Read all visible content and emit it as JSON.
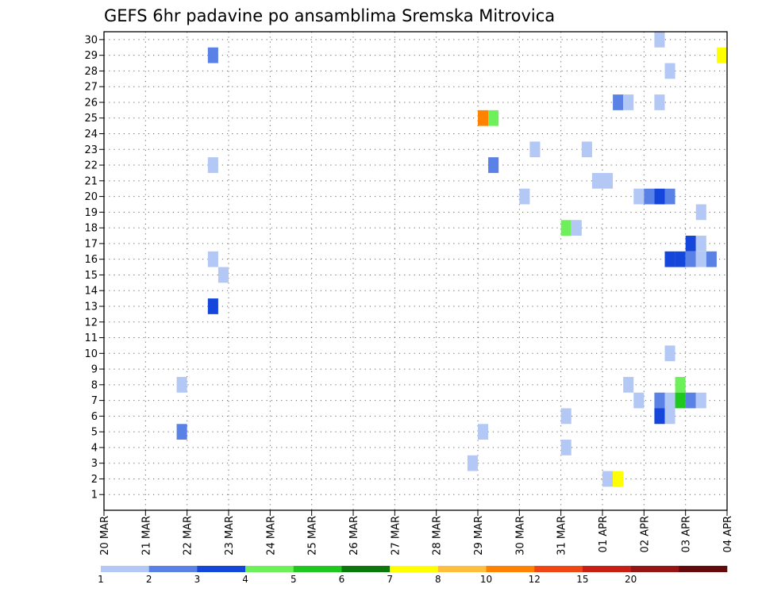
{
  "chart_data": {
    "type": "heatmap",
    "title": "GEFS 6hr padavine po ansamblima Sremska Mitrovica",
    "x_tick_labels": [
      "20 MAR",
      "21 MAR",
      "22 MAR",
      "23 MAR",
      "24 MAR",
      "25 MAR",
      "26 MAR",
      "27 MAR",
      "28 MAR",
      "29 MAR",
      "30 MAR",
      "31 MAR",
      "01 APR",
      "02 APR",
      "03 APR",
      "04 APR"
    ],
    "x_unit": "days since 20 MAR 00z",
    "xlim": [
      0,
      15
    ],
    "y_tick_labels": [
      "1",
      "2",
      "3",
      "4",
      "5",
      "6",
      "7",
      "8",
      "9",
      "10",
      "11",
      "12",
      "13",
      "14",
      "15",
      "16",
      "17",
      "18",
      "19",
      "20",
      "21",
      "22",
      "23",
      "24",
      "25",
      "26",
      "27",
      "28",
      "29",
      "30"
    ],
    "ylim": [
      0,
      30.5
    ],
    "grid": true,
    "legend": {
      "placement": "bottom",
      "bins": [
        {
          "label": "1",
          "color": "#b4c8f5"
        },
        {
          "label": "2",
          "color": "#5a82e6"
        },
        {
          "label": "3",
          "color": "#1446dc"
        },
        {
          "label": "4",
          "color": "#6ef05a"
        },
        {
          "label": "5",
          "color": "#1ec81e"
        },
        {
          "label": "6",
          "color": "#0a780a"
        },
        {
          "label": "7",
          "color": "#ffff00"
        },
        {
          "label": "8",
          "color": "#ffbe3c"
        },
        {
          "label": "10",
          "color": "#ff8200"
        },
        {
          "label": "12",
          "color": "#f04614"
        },
        {
          "label": "15",
          "color": "#c81e14"
        },
        {
          "label": "20",
          "color": "#961414"
        },
        {
          "label": "",
          "color": "#640a0a"
        }
      ]
    },
    "cells": [
      {
        "x": 2.5,
        "y": 29,
        "bin": 1
      },
      {
        "x": 2.5,
        "y": 22,
        "bin": 0
      },
      {
        "x": 2.5,
        "y": 16,
        "bin": 0
      },
      {
        "x": 2.75,
        "y": 15,
        "bin": 0
      },
      {
        "x": 2.5,
        "y": 13,
        "bin": 2
      },
      {
        "x": 1.75,
        "y": 8,
        "bin": 0
      },
      {
        "x": 1.75,
        "y": 5,
        "bin": 1
      },
      {
        "x": 8.75,
        "y": 3,
        "bin": 0
      },
      {
        "x": 9.0,
        "y": 5,
        "bin": 0
      },
      {
        "x": 9.0,
        "y": 25,
        "bin": 8
      },
      {
        "x": 9.25,
        "y": 25,
        "bin": 3
      },
      {
        "x": 9.25,
        "y": 22,
        "bin": 1
      },
      {
        "x": 10.0,
        "y": 20,
        "bin": 0
      },
      {
        "x": 10.25,
        "y": 23,
        "bin": 0
      },
      {
        "x": 11.0,
        "y": 18,
        "bin": 3
      },
      {
        "x": 11.25,
        "y": 18,
        "bin": 0
      },
      {
        "x": 11.0,
        "y": 6,
        "bin": 0
      },
      {
        "x": 11.0,
        "y": 4,
        "bin": 0
      },
      {
        "x": 11.5,
        "y": 23,
        "bin": 0
      },
      {
        "x": 11.75,
        "y": 21,
        "bin": 0
      },
      {
        "x": 12.0,
        "y": 21,
        "bin": 0
      },
      {
        "x": 12.0,
        "y": 2,
        "bin": 0
      },
      {
        "x": 12.25,
        "y": 2,
        "bin": 6
      },
      {
        "x": 12.25,
        "y": 26,
        "bin": 1
      },
      {
        "x": 12.5,
        "y": 26,
        "bin": 0
      },
      {
        "x": 12.5,
        "y": 8,
        "bin": 0
      },
      {
        "x": 12.75,
        "y": 20,
        "bin": 0
      },
      {
        "x": 12.75,
        "y": 7,
        "bin": 0
      },
      {
        "x": 13.0,
        "y": 20,
        "bin": 1
      },
      {
        "x": 13.25,
        "y": 30,
        "bin": 0
      },
      {
        "x": 13.25,
        "y": 26,
        "bin": 0
      },
      {
        "x": 13.25,
        "y": 20,
        "bin": 2
      },
      {
        "x": 13.25,
        "y": 7,
        "bin": 1
      },
      {
        "x": 13.25,
        "y": 6,
        "bin": 2
      },
      {
        "x": 13.5,
        "y": 28,
        "bin": 0
      },
      {
        "x": 13.5,
        "y": 20,
        "bin": 1
      },
      {
        "x": 13.5,
        "y": 16,
        "bin": 2
      },
      {
        "x": 13.5,
        "y": 10,
        "bin": 0
      },
      {
        "x": 13.5,
        "y": 7,
        "bin": 0
      },
      {
        "x": 13.5,
        "y": 6,
        "bin": 0
      },
      {
        "x": 13.75,
        "y": 16,
        "bin": 2
      },
      {
        "x": 13.75,
        "y": 8,
        "bin": 3
      },
      {
        "x": 13.75,
        "y": 7,
        "bin": 4
      },
      {
        "x": 14.0,
        "y": 17,
        "bin": 2
      },
      {
        "x": 14.0,
        "y": 16,
        "bin": 1
      },
      {
        "x": 14.0,
        "y": 7,
        "bin": 1
      },
      {
        "x": 14.25,
        "y": 19,
        "bin": 0
      },
      {
        "x": 14.25,
        "y": 17,
        "bin": 0
      },
      {
        "x": 14.25,
        "y": 16,
        "bin": 0
      },
      {
        "x": 14.25,
        "y": 7,
        "bin": 0
      },
      {
        "x": 14.5,
        "y": 16,
        "bin": 1
      },
      {
        "x": 14.75,
        "y": 29,
        "bin": 6
      }
    ]
  }
}
